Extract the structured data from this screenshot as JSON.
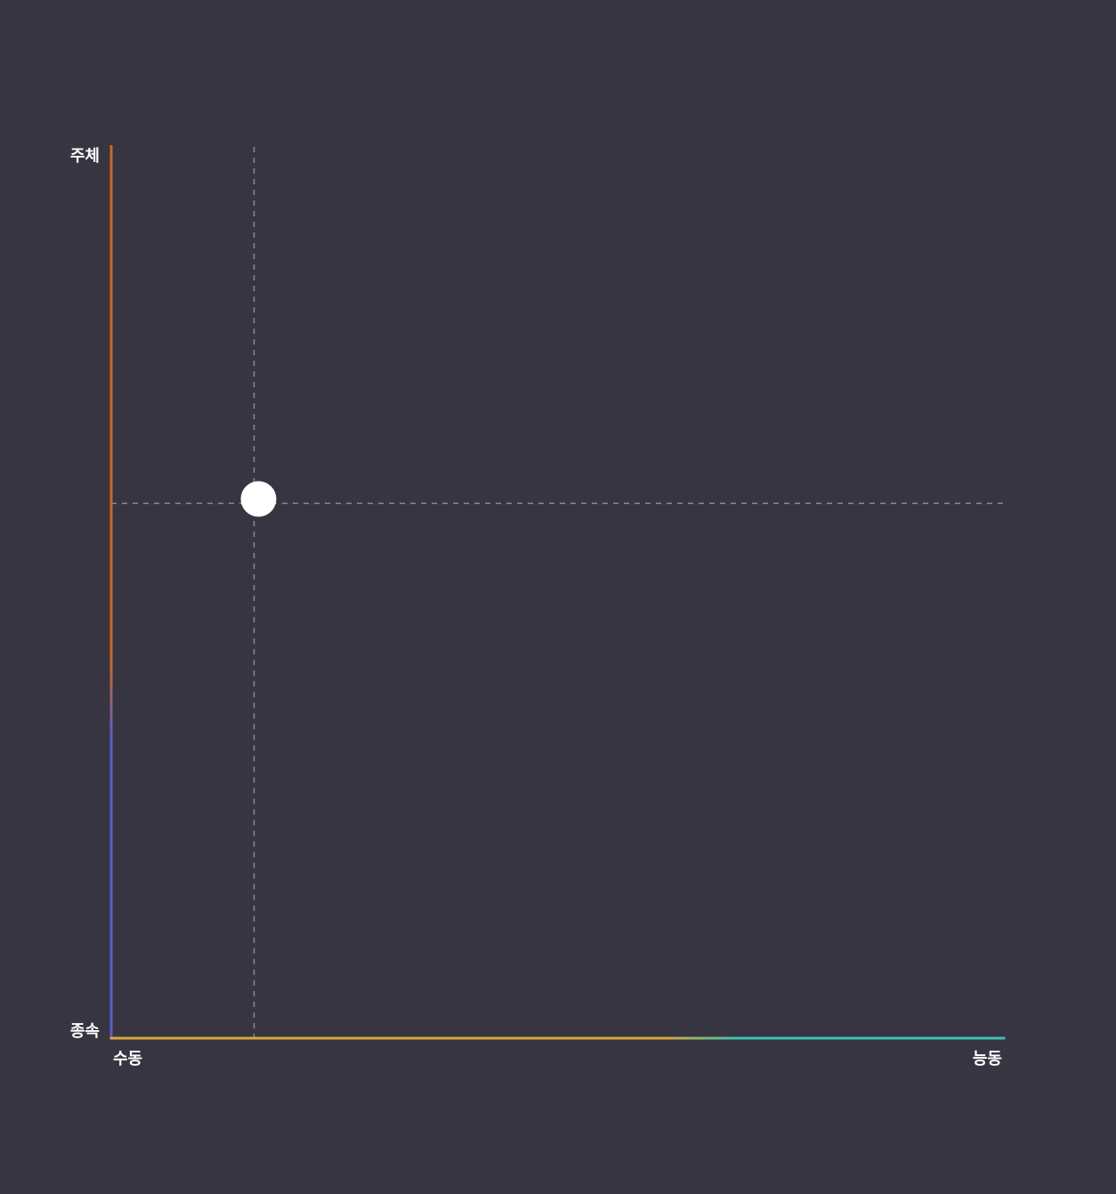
{
  "chart_data": {
    "type": "scatter",
    "title": "",
    "xlabel": "",
    "ylabel": "",
    "x_min_label": "수동",
    "x_max_label": "능동",
    "y_min_label": "종속",
    "y_max_label": "주체",
    "xlim": [
      0,
      1
    ],
    "ylim": [
      0,
      1
    ],
    "grid": false,
    "crosshair": true,
    "points": [
      {
        "x": 0.165,
        "y": 0.605
      }
    ],
    "colors": {
      "background": "#363541",
      "y_axis_top": "#c9682a",
      "y_axis_bottom": "#5a5fc8",
      "x_axis_left": "#d8a83a",
      "x_axis_right": "#3cc0b0",
      "crosshair": "#8a8a92",
      "point": "#ffffff"
    }
  }
}
